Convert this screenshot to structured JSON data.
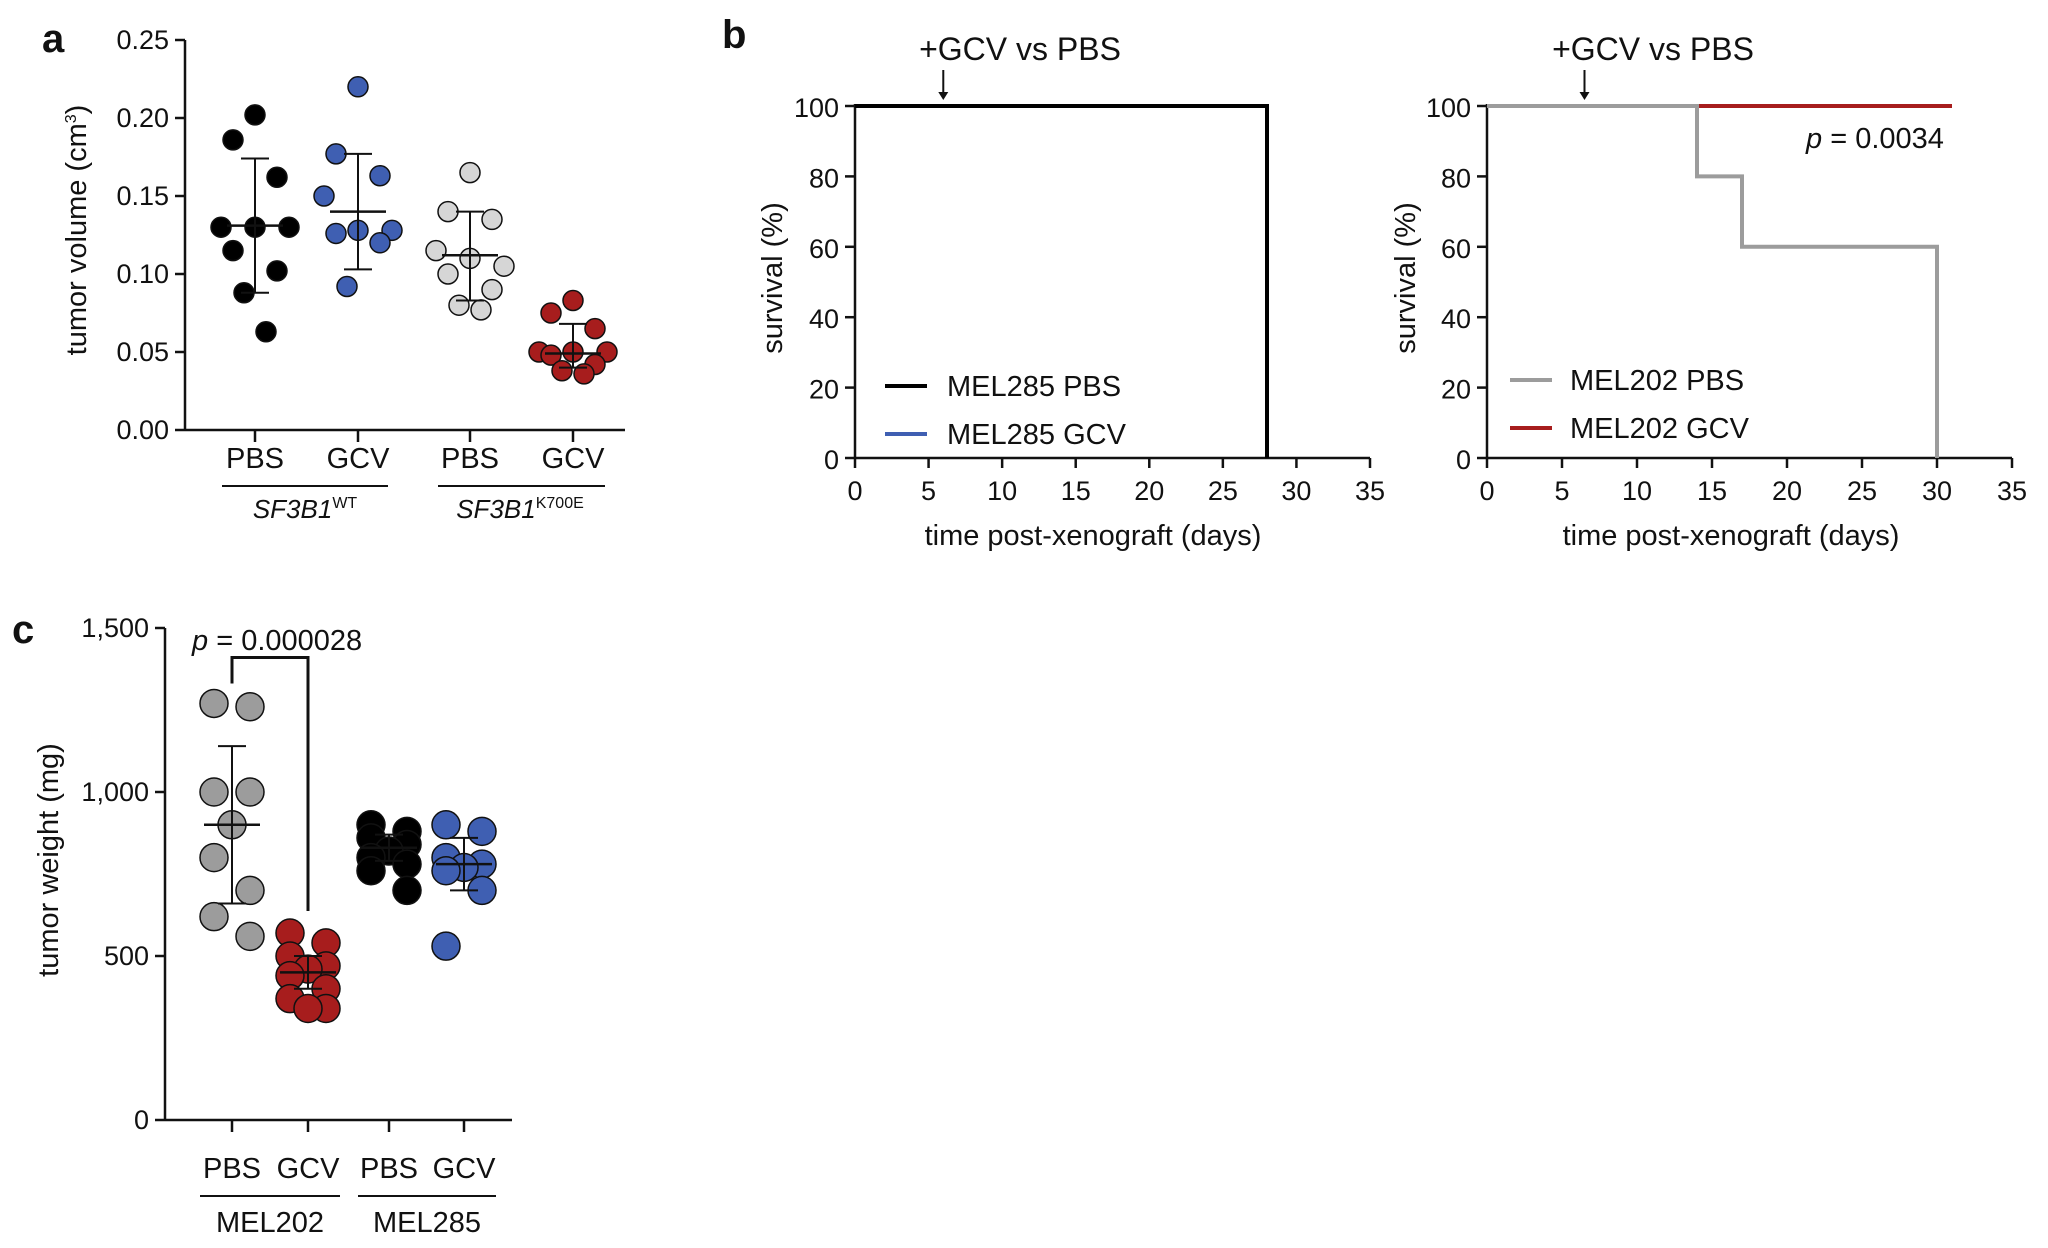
{
  "colors": {
    "black": "#000000",
    "blue": "#3f5fb2",
    "grey": "#9c9c9c",
    "lightgrey": "#d6d6d6",
    "red": "#a71d1d"
  },
  "chart_data": [
    {
      "panel": "a",
      "type": "scatter",
      "ylabel": "tumor volume (cm",
      "ylabel_sup": "3",
      "ylabel_end": ")",
      "ylim": [
        0,
        0.25
      ],
      "yticks": [
        "0.00",
        "0.05",
        "0.10",
        "0.15",
        "0.20",
        "0.25"
      ],
      "categories": [
        "PBS",
        "GCV",
        "PBS",
        "GCV"
      ],
      "groups": [
        {
          "label": "SF3B1",
          "sup": "WT"
        },
        {
          "label": "SF3B1",
          "sup": "K700E"
        }
      ],
      "series": [
        {
          "name": "SF3B1 WT PBS",
          "color": "black",
          "values": [
            0.202,
            0.186,
            0.162,
            0.13,
            0.13,
            0.13,
            0.115,
            0.102,
            0.088,
            0.063
          ],
          "mean": 0.131,
          "sd_low": 0.088,
          "sd_high": 0.174
        },
        {
          "name": "SF3B1 WT GCV",
          "color": "blue",
          "values": [
            0.22,
            0.177,
            0.163,
            0.15,
            0.128,
            0.128,
            0.126,
            0.12,
            0.092
          ],
          "mean": 0.14,
          "sd_low": 0.103,
          "sd_high": 0.177
        },
        {
          "name": "SF3B1 K700E PBS",
          "color": "lightgrey",
          "values": [
            0.165,
            0.14,
            0.135,
            0.115,
            0.11,
            0.105,
            0.1,
            0.09,
            0.08,
            0.077
          ],
          "mean": 0.112,
          "sd_low": 0.083,
          "sd_high": 0.14
        },
        {
          "name": "SF3B1 K700E GCV",
          "color": "red",
          "values": [
            0.083,
            0.075,
            0.065,
            0.05,
            0.05,
            0.05,
            0.048,
            0.042,
            0.038,
            0.036
          ],
          "mean": 0.049,
          "sd_low": 0.04,
          "sd_high": 0.068
        }
      ]
    },
    {
      "panel": "b",
      "type": "line",
      "annotation": "+GCV vs PBS",
      "arrow_x": 6,
      "xlabel": "time post-xenograft (days)",
      "ylabel": "survival (%)",
      "xlim": [
        0,
        35
      ],
      "ylim": [
        0,
        100
      ],
      "xticks": [
        "0",
        "5",
        "10",
        "15",
        "20",
        "25",
        "30",
        "35"
      ],
      "yticks": [
        "0",
        "20",
        "40",
        "60",
        "80",
        "100"
      ],
      "series": [
        {
          "name": "MEL285 PBS",
          "color": "black",
          "x": [
            0,
            28,
            28
          ],
          "y": [
            100,
            100,
            0
          ]
        },
        {
          "name": "MEL285 GCV",
          "color": "blue",
          "x": [
            0,
            28,
            28
          ],
          "y": [
            100,
            100,
            0
          ]
        }
      ]
    },
    {
      "panel": "b2",
      "type": "line",
      "annotation": "+GCV vs PBS",
      "arrow_x": 6.5,
      "p_label": "p",
      "p_value": " = 0.0034",
      "xlabel": "time post-xenograft (days)",
      "ylabel": "survival (%)",
      "xlim": [
        0,
        35
      ],
      "ylim": [
        0,
        100
      ],
      "xticks": [
        "0",
        "5",
        "10",
        "15",
        "20",
        "25",
        "30",
        "35"
      ],
      "yticks": [
        "0",
        "20",
        "40",
        "60",
        "80",
        "100"
      ],
      "series": [
        {
          "name": "MEL202 PBS",
          "color": "grey",
          "x": [
            0,
            14,
            14,
            17,
            17,
            30,
            30
          ],
          "y": [
            100,
            100,
            80,
            80,
            60,
            60,
            0
          ]
        },
        {
          "name": "MEL202 GCV",
          "color": "red",
          "x": [
            14,
            31
          ],
          "y": [
            100,
            100
          ]
        }
      ]
    },
    {
      "panel": "c",
      "type": "scatter",
      "ylabel": "tumor weight (mg)",
      "ylim": [
        0,
        1500
      ],
      "yticks": [
        "0",
        "500",
        "1,000",
        "1,500"
      ],
      "categories": [
        "PBS",
        "GCV",
        "PBS",
        "GCV"
      ],
      "groups": [
        {
          "label": "MEL202"
        },
        {
          "label": "MEL285"
        }
      ],
      "p_label": "p",
      "p_value": " = 0.000028",
      "series": [
        {
          "name": "MEL202 PBS",
          "color": "grey",
          "values": [
            1270,
            1260,
            1000,
            1000,
            900,
            800,
            700,
            620,
            560
          ],
          "mean": 900,
          "sd_low": 660,
          "sd_high": 1140
        },
        {
          "name": "MEL202 GCV",
          "color": "red",
          "values": [
            570,
            540,
            500,
            470,
            460,
            440,
            400,
            370,
            340,
            340
          ],
          "mean": 450,
          "sd_low": 400,
          "sd_high": 500
        },
        {
          "name": "MEL285 PBS",
          "color": "black",
          "values": [
            900,
            880,
            860,
            840,
            820,
            800,
            780,
            760,
            700
          ],
          "mean": 830,
          "sd_low": 790,
          "sd_high": 870
        },
        {
          "name": "MEL285 GCV",
          "color": "blue",
          "values": [
            900,
            880,
            800,
            780,
            770,
            760,
            700,
            530
          ],
          "mean": 780,
          "sd_low": 700,
          "sd_high": 860
        }
      ]
    }
  ],
  "panels": {
    "a": "a",
    "b": "b",
    "c": "c"
  }
}
